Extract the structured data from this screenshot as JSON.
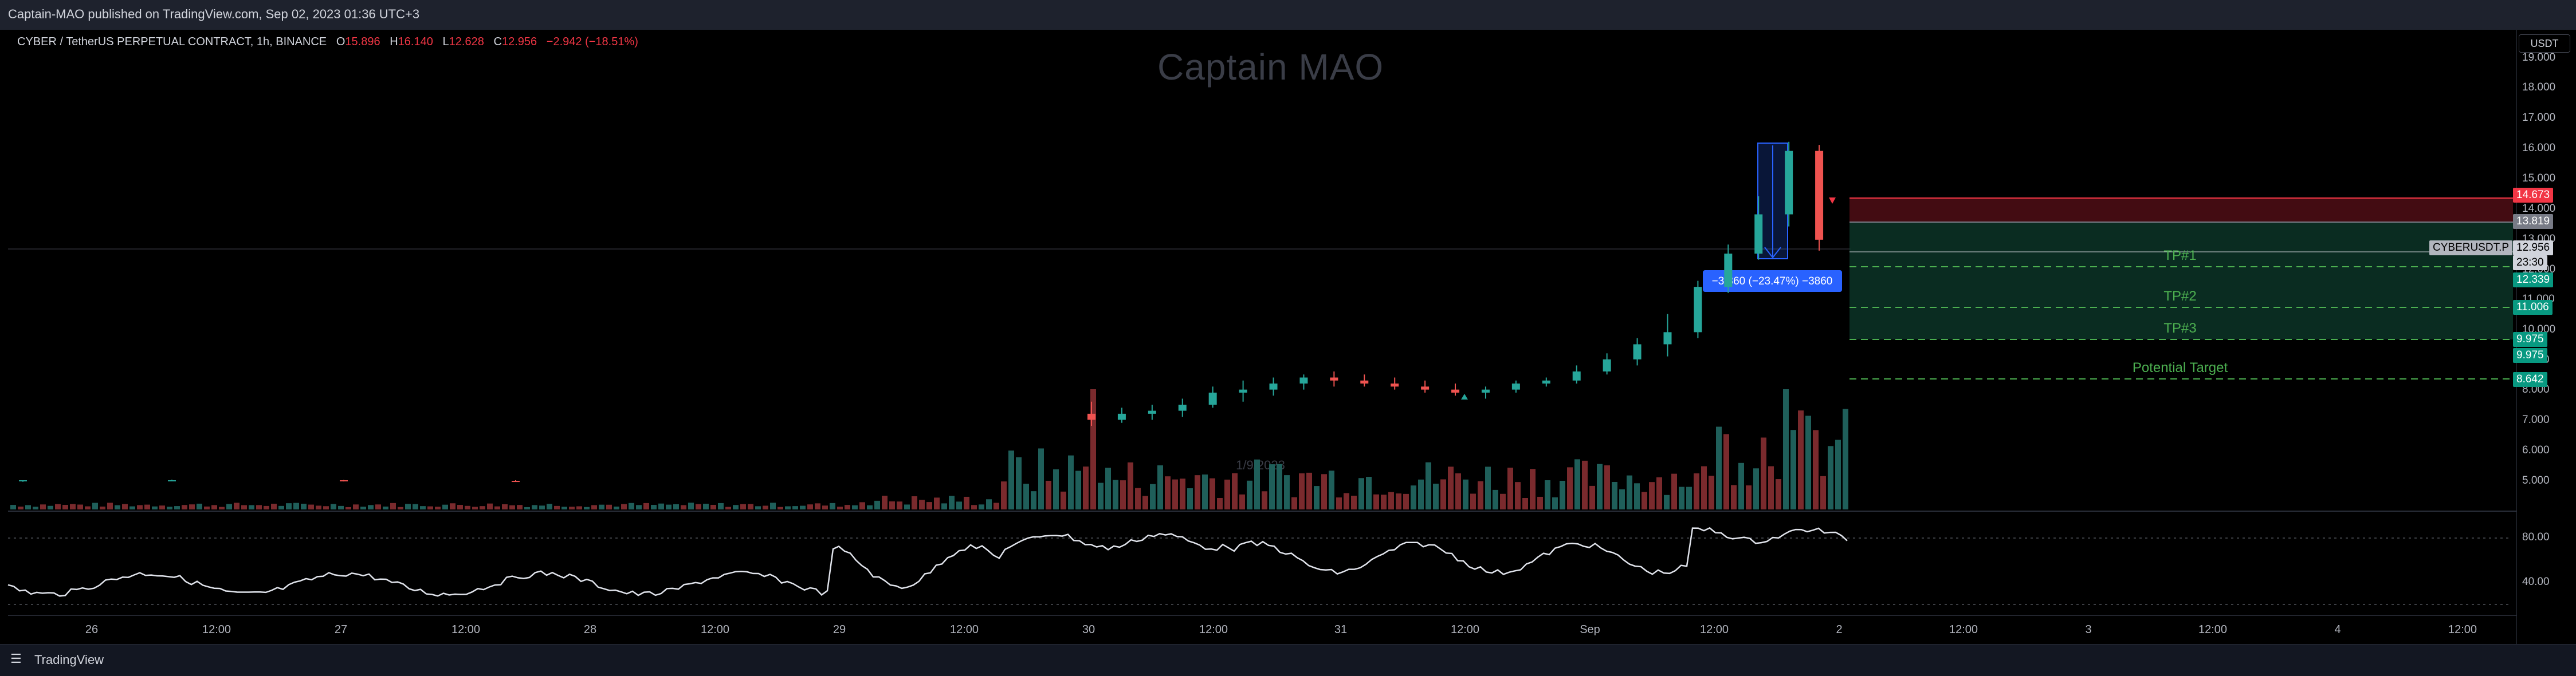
{
  "header": {
    "publish_text": "Captain-MAO published on TradingView.com, Sep 02, 2023 01:36 UTC+3"
  },
  "watermark": "Captain MAO",
  "symbol": {
    "name": "CYBER / TetherUS PERPETUAL CONTRACT, 1h, BINANCE",
    "o_label": "O",
    "o_value": "15.896",
    "h_label": "H",
    "h_value": "16.140",
    "l_label": "L",
    "l_value": "12.628",
    "c_label": "C",
    "c_value": "12.956",
    "change": "−2.942 (−18.51%)"
  },
  "price_axis": {
    "currency": "USDT",
    "ticks": [
      "19.000",
      "18.000",
      "17.000",
      "16.000",
      "15.000",
      "14.000",
      "13.000",
      "12.000",
      "11.000",
      "10.000",
      "9.000",
      "8.000",
      "7.000",
      "6.000",
      "5.000"
    ],
    "badges": {
      "stop": "14.673",
      "entry": "13.819",
      "current_label": "CYBERUSDT.P",
      "current": "12.956",
      "countdown": "23:30",
      "tp1": "12.339",
      "tp2": "11.006",
      "tp3a": "9.975",
      "tp3b": "9.975",
      "target": "8.642"
    }
  },
  "indicator_axis": {
    "ticks": [
      "80.00",
      "40.00"
    ]
  },
  "annotations": {
    "tp1": "TP#1",
    "tp2": "TP#2",
    "tp3": "TP#3",
    "potential_target": "Potential Target",
    "measure": "−3.860 (−23.47%) −3860",
    "faint_date": "1/9/2023"
  },
  "time_axis": {
    "ticks": [
      "26",
      "12:00",
      "27",
      "12:00",
      "28",
      "12:00",
      "29",
      "12:00",
      "30",
      "12:00",
      "31",
      "12:00",
      "Sep",
      "12:00",
      "2",
      "12:00",
      "3",
      "12:00",
      "4",
      "12:00"
    ]
  },
  "footer": {
    "brand": "TradingView"
  },
  "colors": {
    "up": "#26a69a",
    "down": "#ef5350",
    "target_green": "#4caf50",
    "stop_red": "#f23645",
    "measure_blue": "#2962ff"
  },
  "chart_data": {
    "type": "candlestick",
    "symbol": "CYBERUSDT.P",
    "interval": "1h",
    "ylim": [
      4.5,
      19.5
    ],
    "candles": [
      [
        5.0,
        5.0,
        4.95,
        5.0
      ],
      [
        5.0,
        5.02,
        4.97,
        5.0
      ],
      [
        5.0,
        5.01,
        4.96,
        4.98
      ],
      [
        4.98,
        5.0,
        4.95,
        4.97
      ],
      [
        7.2,
        7.6,
        6.8,
        7.0
      ],
      [
        7.0,
        7.4,
        6.9,
        7.2
      ],
      [
        7.2,
        7.5,
        7.0,
        7.3
      ],
      [
        7.3,
        7.7,
        7.1,
        7.5
      ],
      [
        7.5,
        8.1,
        7.4,
        7.9
      ],
      [
        7.9,
        8.3,
        7.6,
        8.0
      ],
      [
        8.0,
        8.4,
        7.8,
        8.2
      ],
      [
        8.2,
        8.5,
        8.0,
        8.4
      ],
      [
        8.4,
        8.6,
        8.1,
        8.3
      ],
      [
        8.3,
        8.5,
        8.1,
        8.2
      ],
      [
        8.2,
        8.4,
        8.0,
        8.1
      ],
      [
        8.1,
        8.3,
        7.9,
        8.0
      ],
      [
        8.0,
        8.2,
        7.8,
        7.9
      ],
      [
        7.9,
        8.1,
        7.7,
        8.0
      ],
      [
        8.0,
        8.3,
        7.9,
        8.2
      ],
      [
        8.2,
        8.4,
        8.1,
        8.3
      ],
      [
        8.3,
        8.8,
        8.2,
        8.6
      ],
      [
        8.6,
        9.2,
        8.5,
        9.0
      ],
      [
        9.0,
        9.7,
        8.8,
        9.5
      ],
      [
        9.5,
        10.5,
        9.1,
        9.9
      ],
      [
        9.9,
        11.6,
        9.7,
        11.4
      ],
      [
        11.4,
        12.8,
        11.2,
        12.5
      ],
      [
        12.5,
        14.4,
        12.3,
        13.8
      ],
      [
        13.8,
        16.2,
        13.4,
        15.9
      ],
      [
        15.9,
        16.1,
        12.6,
        12.96
      ]
    ]
  }
}
